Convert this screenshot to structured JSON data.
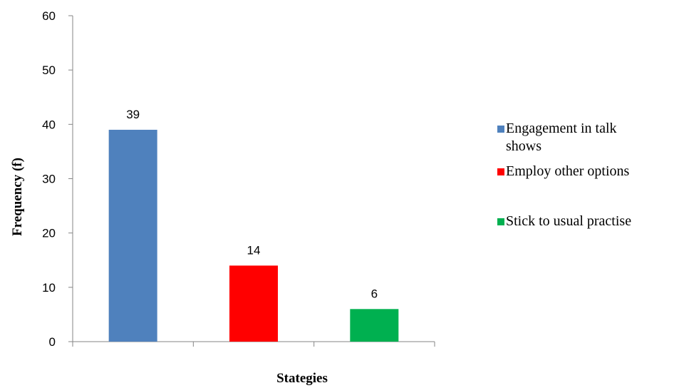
{
  "chart_data": {
    "type": "bar",
    "categories": [
      "Engagement in talk shows",
      "Employ other options",
      "Stick to usual practise"
    ],
    "values": [
      39,
      14,
      6
    ],
    "colors": [
      "#4f81bd",
      "#ff0000",
      "#00b050"
    ],
    "title": "",
    "xlabel": "Stategies",
    "ylabel": "Frequency (f)",
    "ylim": [
      0,
      60
    ],
    "yticks": [
      0,
      10,
      20,
      30,
      40,
      50,
      60
    ],
    "data_labels": [
      "39",
      "14",
      "6"
    ],
    "grid": false,
    "legend": {
      "placement": "right",
      "entries": [
        {
          "lines": [
            "Engagement in talk",
            "shows"
          ],
          "color": "#4f81bd"
        },
        {
          "lines": [
            "Employ other options"
          ],
          "color": "#ff0000"
        },
        {
          "lines": [
            "Stick to usual practise"
          ],
          "color": "#00b050"
        }
      ]
    }
  }
}
